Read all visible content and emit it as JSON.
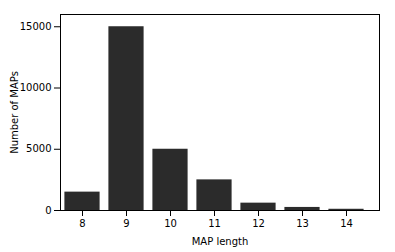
{
  "chart_data": {
    "type": "bar",
    "x": [
      8,
      9,
      10,
      11,
      12,
      13,
      14
    ],
    "values": [
      1500,
      15000,
      5000,
      2500,
      600,
      250,
      100
    ],
    "color": "#2b2b2b",
    "xlabel": "MAP length",
    "ylabel": "Number of MAPs",
    "xlim": [
      7.5,
      14.75
    ],
    "xticks": [
      8,
      9,
      10,
      11,
      12,
      13,
      14
    ],
    "ylim": [
      0,
      16000
    ],
    "yticks": [
      0,
      5000,
      10000,
      15000
    ],
    "grid": false
  }
}
